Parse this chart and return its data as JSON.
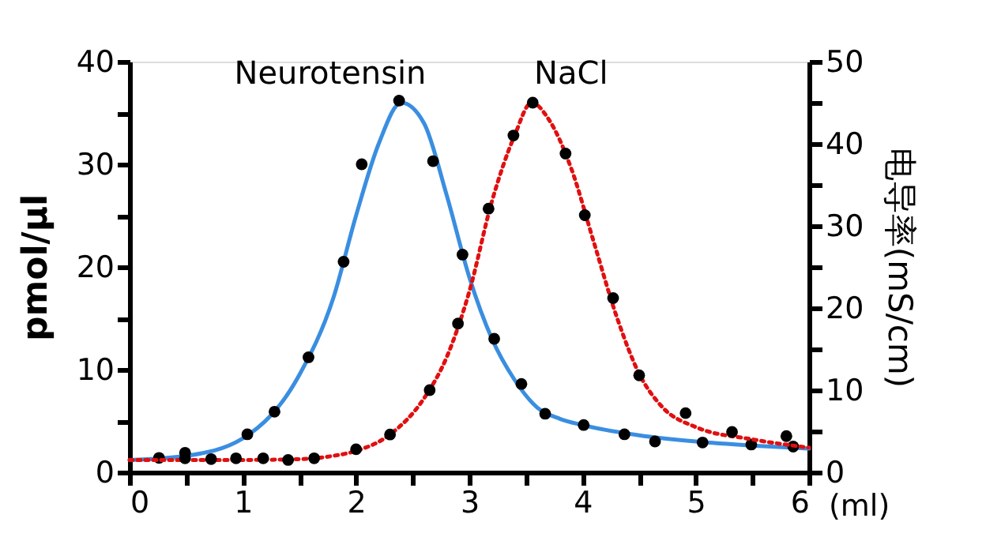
{
  "chart_data": {
    "type": "line",
    "xlabel": "(ml)",
    "ylabel": "pmol/µl",
    "y2label": "电导率(mS/cm)",
    "xlim": [
      0,
      6
    ],
    "xticks": [
      0,
      {
        "value": 0.5,
        "label": null
      },
      1,
      {
        "value": 1.5,
        "label": null
      },
      2,
      {
        "value": 2.5,
        "label": null
      },
      3,
      {
        "value": 3.5,
        "label": null
      },
      4,
      {
        "value": 4.5,
        "label": null
      },
      5,
      {
        "value": 5.5,
        "label": null
      },
      6
    ],
    "ylim": [
      0,
      40
    ],
    "yticks": [
      0,
      {
        "value": 5,
        "label": null
      },
      10,
      {
        "value": 15,
        "label": null
      },
      20,
      {
        "value": 25,
        "label": null
      },
      30,
      {
        "value": 35,
        "label": null
      },
      40
    ],
    "y2lim": [
      0,
      50
    ],
    "y2ticks": [
      0,
      {
        "value": 5,
        "label": null
      },
      10,
      {
        "value": 15,
        "label": null
      },
      20,
      {
        "value": 25,
        "label": null
      },
      30,
      {
        "value": 35,
        "label": null
      },
      40,
      {
        "value": 45,
        "label": null
      },
      50
    ],
    "grid": false,
    "series": [
      {
        "name": "Neurotensin",
        "color": "#3a8ee0",
        "line_style": "solid",
        "marker": "none",
        "x": [
          0,
          0.5,
          1.0,
          1.5,
          1.8,
          2.0,
          2.2,
          2.4,
          2.6,
          2.8,
          3.0,
          3.2,
          3.4,
          3.6,
          3.8,
          4.0,
          4.5,
          5.0,
          5.5,
          6.0
        ],
        "values": [
          1.2,
          1.6,
          3.3,
          9.5,
          17,
          25,
          32,
          36,
          34,
          27,
          19,
          13,
          9,
          6.3,
          5.2,
          4.6,
          3.6,
          3.0,
          2.6,
          2.3
        ]
      },
      {
        "name": "NaCl",
        "axis": "y2",
        "color": "#e01010",
        "line_style": "dotted",
        "marker": "none",
        "x": [
          0,
          1.0,
          1.5,
          1.8,
          2.0,
          2.3,
          2.6,
          2.8,
          3.0,
          3.2,
          3.4,
          3.55,
          3.7,
          3.9,
          4.1,
          4.3,
          4.5,
          4.7,
          5.0,
          5.5,
          6.0
        ],
        "values": [
          1.5,
          1.5,
          1.6,
          2.0,
          2.6,
          4.6,
          9,
          14,
          22,
          33,
          41,
          45,
          43,
          37,
          28,
          19,
          12,
          8,
          5.5,
          4,
          3
        ]
      },
      {
        "type": "scatter",
        "color": "#000000",
        "marker": "circle",
        "x": [
          0.26,
          0.49,
          1.04,
          1.28,
          1.58,
          1.89,
          2.05,
          2.38,
          2.68,
          2.94,
          3.22,
          3.46,
          3.67,
          4.01,
          4.37,
          4.64,
          5.06,
          5.49,
          5.86
        ],
        "values": [
          1.4,
          1.9,
          3.7,
          5.9,
          11.2,
          20.5,
          30.0,
          36.2,
          30.3,
          21.2,
          13.0,
          8.6,
          5.7,
          4.6,
          3.7,
          3.0,
          2.9,
          2.7,
          2.5
        ]
      },
      {
        "type": "scatter",
        "axis": "y2",
        "color": "#000000",
        "marker": "circle",
        "x": [
          0.49,
          0.72,
          0.94,
          1.18,
          1.4,
          1.63,
          2.0,
          2.3,
          2.65,
          2.9,
          3.17,
          3.39,
          3.56,
          3.85,
          4.02,
          4.27,
          4.5,
          4.91,
          5.32,
          5.8
        ],
        "values": [
          1.7,
          1.6,
          1.7,
          1.7,
          1.5,
          1.7,
          2.8,
          4.6,
          10.0,
          18.1,
          32.1,
          41.0,
          45.0,
          38.8,
          31.3,
          21.2,
          11.8,
          7.2,
          4.9,
          4.4
        ]
      }
    ]
  }
}
